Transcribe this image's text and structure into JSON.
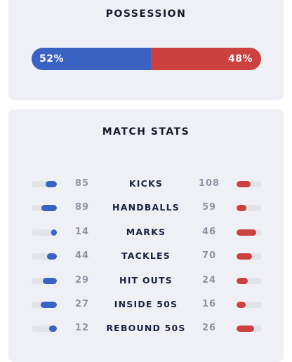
{
  "possession": {
    "title": "POSSESSION",
    "home": {
      "value": 52,
      "label": "52%"
    },
    "away": {
      "value": 48,
      "label": "48%"
    }
  },
  "match_stats": {
    "title": "MATCH STATS",
    "rows": [
      {
        "label": "KICKS",
        "home": 85,
        "away": 108
      },
      {
        "label": "HANDBALLS",
        "home": 89,
        "away": 59
      },
      {
        "label": "MARKS",
        "home": 14,
        "away": 46
      },
      {
        "label": "TACKLES",
        "home": 44,
        "away": 70
      },
      {
        "label": "HIT OUTS",
        "home": 29,
        "away": 24
      },
      {
        "label": "INSIDE 50S",
        "home": 27,
        "away": 16
      },
      {
        "label": "REBOUND 50S",
        "home": 12,
        "away": 26
      }
    ]
  }
}
